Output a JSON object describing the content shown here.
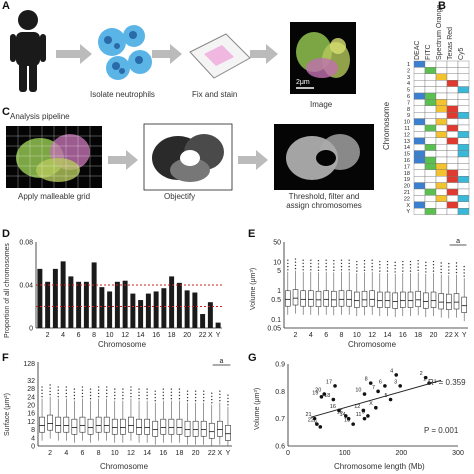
{
  "panels": {
    "A": {
      "letter": "A",
      "steps": [
        "Isolate neutrophils",
        "Fix and stain",
        "Image"
      ],
      "scalebar": "2μm"
    },
    "B": {
      "letter": "B",
      "columns": [
        "DEAC",
        "FITC",
        "Spectrum Orange",
        "Texas Red",
        "Cy5"
      ],
      "row_axis": "Chromosome",
      "rows": [
        "1",
        "2",
        "3",
        "4",
        "5",
        "6",
        "7",
        "8",
        "9",
        "10",
        "11",
        "12",
        "13",
        "14",
        "15",
        "16",
        "17",
        "18",
        "19",
        "20",
        "21",
        "22",
        "X",
        "Y"
      ]
    },
    "C": {
      "letter": "C",
      "pipeline_title": "Analysis pipeline",
      "steps": [
        "Apply malleable grid",
        "Objectify",
        "Threshold, filter and assign chromosomes"
      ]
    },
    "D": {
      "letter": "D",
      "ylabel": "Proportion of all chromosomes",
      "xlabel": "Chromosome"
    },
    "E": {
      "letter": "E",
      "ylabel": "Volume (μm³)",
      "xlabel": "Chromosome",
      "sig": "a"
    },
    "F": {
      "letter": "F",
      "ylabel": "Surface (μm²)",
      "xlabel": "Chromosome",
      "sig": "a"
    },
    "G": {
      "letter": "G",
      "ylabel": "Volume (μm³)",
      "xlabel": "Chromosome length (Mb)",
      "r2": "R² = 0.359",
      "p": "P = 0.001"
    }
  },
  "colors": {
    "bar": "#1a1a1a",
    "refline": "#cc2222",
    "trend": "#222222",
    "cell_green": "#8ab84a",
    "cell_pink": "#c070b0",
    "neutrophil": "#5ab4e6"
  },
  "chart_data": [
    {
      "id": "D",
      "type": "bar",
      "title": "",
      "xlabel": "Chromosome",
      "ylabel": "Proportion of all chromosomes",
      "categories": [
        "1",
        "2",
        "3",
        "4",
        "5",
        "6",
        "7",
        "8",
        "9",
        "10",
        "11",
        "12",
        "13",
        "14",
        "15",
        "16",
        "17",
        "18",
        "19",
        "20",
        "21",
        "22",
        "X",
        "Y"
      ],
      "values": [
        0.055,
        0.043,
        0.055,
        0.062,
        0.048,
        0.043,
        0.043,
        0.061,
        0.038,
        0.034,
        0.043,
        0.044,
        0.032,
        0.026,
        0.032,
        0.034,
        0.037,
        0.048,
        0.042,
        0.035,
        0.033,
        0.013,
        0.024,
        0.005
      ],
      "ylim": [
        0,
        0.08
      ],
      "yticks": [
        "0",
        "0.04",
        "0.08"
      ],
      "xticks": [
        "2",
        "4",
        "6",
        "8",
        "10",
        "12",
        "14",
        "16",
        "18",
        "20",
        "22",
        "X",
        "Y"
      ],
      "reference_lines": [
        0.04,
        0.02
      ]
    },
    {
      "id": "E",
      "type": "box",
      "xlabel": "Chromosome",
      "ylabel": "Volume (μm³)",
      "scale": "log",
      "yticks": [
        "0.05",
        "0.1",
        "0.5",
        "1",
        "5",
        "10",
        "50"
      ],
      "xticks": [
        "2",
        "4",
        "6",
        "8",
        "10",
        "12",
        "14",
        "16",
        "18",
        "20",
        "22",
        "X",
        "Y"
      ],
      "medians": [
        0.5,
        0.55,
        0.5,
        0.5,
        0.48,
        0.5,
        0.48,
        0.5,
        0.5,
        0.45,
        0.48,
        0.5,
        0.45,
        0.45,
        0.42,
        0.45,
        0.45,
        0.48,
        0.42,
        0.45,
        0.4,
        0.38,
        0.4,
        0.3
      ]
    },
    {
      "id": "F",
      "type": "box",
      "xlabel": "Chromosome",
      "ylabel": "Surface (μm²)",
      "yticks": [
        "0",
        "4",
        "8",
        "12",
        "16",
        "20",
        "24",
        "28",
        "32",
        "36",
        "40",
        "44",
        "48",
        "52",
        "56",
        "60",
        "64",
        "68",
        "72",
        "76",
        "80",
        "84",
        "88",
        "92",
        "96",
        "100",
        "104",
        "108",
        "112",
        "116",
        "120",
        "124",
        "128"
      ],
      "xticks": [
        "2",
        "4",
        "6",
        "8",
        "10",
        "12",
        "14",
        "16",
        "18",
        "20",
        "22",
        "X",
        "Y"
      ],
      "medians": [
        10,
        11,
        10,
        10,
        9,
        10,
        9,
        10,
        10,
        9,
        9,
        10,
        9,
        9,
        8,
        9,
        9,
        9,
        8,
        8,
        8,
        7,
        8,
        6
      ]
    },
    {
      "id": "G",
      "type": "scatter",
      "xlabel": "Chromosome length (Mb)",
      "ylabel": "Volume (μm³)",
      "xlim": [
        0,
        300
      ],
      "ylim": [
        0.6,
        0.9
      ],
      "xticks": [
        "0",
        "100",
        "200",
        "300"
      ],
      "yticks": [
        "0.6",
        "0.7",
        "0.8",
        "0.9"
      ],
      "points": [
        {
          "label": "1",
          "x": 249,
          "y": 0.83
        },
        {
          "label": "2",
          "x": 243,
          "y": 0.85
        },
        {
          "label": "3",
          "x": 198,
          "y": 0.82
        },
        {
          "label": "4",
          "x": 191,
          "y": 0.86
        },
        {
          "label": "5",
          "x": 181,
          "y": 0.77
        },
        {
          "label": "6",
          "x": 171,
          "y": 0.82
        },
        {
          "label": "7",
          "x": 159,
          "y": 0.8
        },
        {
          "label": "8",
          "x": 146,
          "y": 0.83
        },
        {
          "label": "9",
          "x": 141,
          "y": 0.71
        },
        {
          "label": "10",
          "x": 135,
          "y": 0.79
        },
        {
          "label": "11",
          "x": 135,
          "y": 0.7
        },
        {
          "label": "12",
          "x": 133,
          "y": 0.73
        },
        {
          "label": "13",
          "x": 115,
          "y": 0.68
        },
        {
          "label": "14",
          "x": 107,
          "y": 0.7
        },
        {
          "label": "15",
          "x": 102,
          "y": 0.71
        },
        {
          "label": "16",
          "x": 90,
          "y": 0.73
        },
        {
          "label": "17",
          "x": 83,
          "y": 0.82
        },
        {
          "label": "18",
          "x": 80,
          "y": 0.77
        },
        {
          "label": "19",
          "x": 59,
          "y": 0.78
        },
        {
          "label": "20",
          "x": 64,
          "y": 0.79
        },
        {
          "label": "21",
          "x": 47,
          "y": 0.7
        },
        {
          "label": "22",
          "x": 51,
          "y": 0.68
        },
        {
          "label": "X",
          "x": 155,
          "y": 0.74
        },
        {
          "label": "Y",
          "x": 57,
          "y": 0.67
        }
      ],
      "trend": [
        [
          40,
          0.705
        ],
        [
          270,
          0.84
        ]
      ]
    }
  ]
}
